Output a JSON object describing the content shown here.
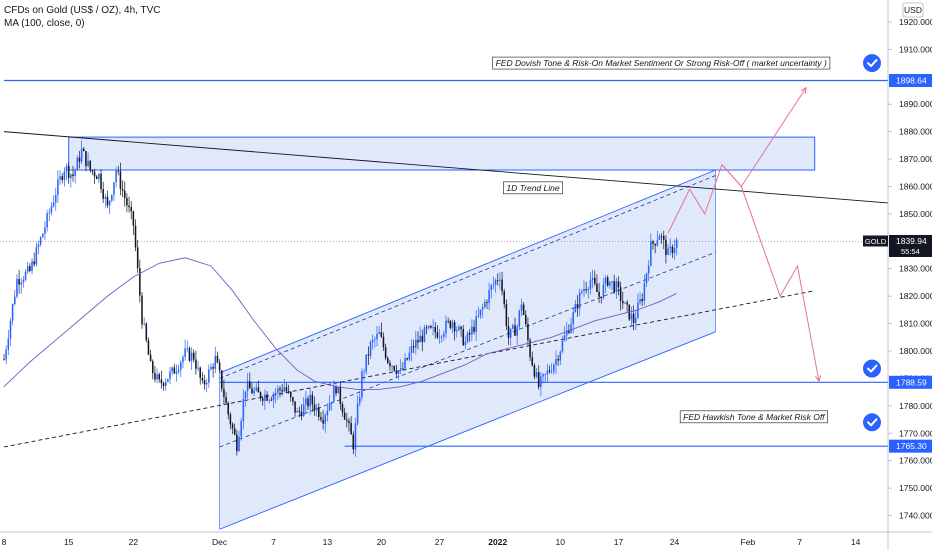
{
  "header": {
    "symbol_title": "CFDs on Gold (US$ / OZ), 4h, TVC",
    "indicator": "MA (100, close, 0)",
    "currency": "USD"
  },
  "colors": {
    "up": "#2962ff",
    "down": "#131722",
    "channel_fill": "#d6e0fb",
    "channel_edge": "#2962ff",
    "ma": "#7e57c2",
    "path": "#e57390",
    "level": "#2962ff",
    "badge": "#2962ff"
  },
  "chart_data": {
    "type": "candlestick",
    "title": "CFDs on Gold (US$ / OZ), 4h, TVC",
    "ylim": [
      1734,
      1928
    ],
    "y_ticks": [
      1740,
      1750,
      1760,
      1770,
      1780,
      1790,
      1800,
      1810,
      1820,
      1830,
      1840,
      1850,
      1860,
      1870,
      1880,
      1890,
      1900,
      1910,
      1920
    ],
    "x_ticks": [
      {
        "label": "8",
        "i": 0
      },
      {
        "label": "15",
        "i": 30
      },
      {
        "label": "22",
        "i": 60
      },
      {
        "label": "Dec",
        "i": 100
      },
      {
        "label": "7",
        "i": 125
      },
      {
        "label": "13",
        "i": 150
      },
      {
        "label": "20",
        "i": 175
      },
      {
        "label": "27",
        "i": 202
      },
      {
        "label": "2022",
        "i": 229
      },
      {
        "label": "10",
        "i": 258
      },
      {
        "label": "17",
        "i": 285
      },
      {
        "label": "24",
        "i": 311
      },
      {
        "label": "Feb",
        "i": 345
      },
      {
        "label": "7",
        "i": 369
      },
      {
        "label": "14",
        "i": 395
      }
    ],
    "x_max_index": 410,
    "closes": [
      [
        0,
        1797
      ],
      [
        6,
        1826
      ],
      [
        12,
        1829
      ],
      [
        18,
        1843
      ],
      [
        24,
        1858
      ],
      [
        28,
        1867
      ],
      [
        32,
        1864
      ],
      [
        36,
        1873
      ],
      [
        40,
        1866
      ],
      [
        44,
        1864
      ],
      [
        48,
        1852
      ],
      [
        52,
        1866
      ],
      [
        56,
        1856
      ],
      [
        60,
        1846
      ],
      [
        64,
        1812
      ],
      [
        68,
        1794
      ],
      [
        72,
        1788
      ],
      [
        78,
        1792
      ],
      [
        84,
        1799
      ],
      [
        88,
        1798
      ],
      [
        92,
        1787
      ],
      [
        98,
        1797
      ],
      [
        100,
        1791
      ],
      [
        104,
        1777
      ],
      [
        108,
        1766
      ],
      [
        112,
        1787
      ],
      [
        118,
        1784
      ],
      [
        124,
        1784
      ],
      [
        130,
        1787
      ],
      [
        136,
        1777
      ],
      [
        142,
        1782
      ],
      [
        148,
        1776
      ],
      [
        154,
        1787
      ],
      [
        158,
        1777
      ],
      [
        162,
        1766
      ],
      [
        166,
        1791
      ],
      [
        170,
        1802
      ],
      [
        174,
        1806
      ],
      [
        178,
        1797
      ],
      [
        184,
        1792
      ],
      [
        190,
        1802
      ],
      [
        196,
        1807
      ],
      [
        202,
        1807
      ],
      [
        208,
        1811
      ],
      [
        214,
        1803
      ],
      [
        220,
        1812
      ],
      [
        226,
        1823
      ],
      [
        230,
        1828
      ],
      [
        234,
        1805
      ],
      [
        238,
        1809
      ],
      [
        240,
        1818
      ],
      [
        244,
        1799
      ],
      [
        248,
        1787
      ],
      [
        252,
        1792
      ],
      [
        256,
        1797
      ],
      [
        260,
        1805
      ],
      [
        264,
        1813
      ],
      [
        268,
        1822
      ],
      [
        272,
        1826
      ],
      [
        276,
        1820
      ],
      [
        280,
        1826
      ],
      [
        284,
        1823
      ],
      [
        288,
        1816
      ],
      [
        292,
        1811
      ],
      [
        296,
        1820
      ],
      [
        300,
        1838
      ],
      [
        304,
        1843
      ],
      [
        308,
        1835
      ],
      [
        312,
        1840
      ]
    ],
    "ma100": [
      [
        0,
        1787
      ],
      [
        12,
        1796
      ],
      [
        24,
        1804
      ],
      [
        36,
        1812
      ],
      [
        48,
        1820
      ],
      [
        60,
        1827
      ],
      [
        72,
        1832
      ],
      [
        84,
        1834
      ],
      [
        96,
        1831
      ],
      [
        106,
        1822
      ],
      [
        116,
        1811
      ],
      [
        126,
        1801
      ],
      [
        136,
        1793
      ],
      [
        144,
        1789
      ],
      [
        154,
        1787
      ],
      [
        164,
        1786
      ],
      [
        174,
        1786
      ],
      [
        184,
        1787
      ],
      [
        194,
        1789
      ],
      [
        204,
        1792
      ],
      [
        214,
        1795
      ],
      [
        224,
        1799
      ],
      [
        234,
        1801
      ],
      [
        244,
        1803
      ],
      [
        254,
        1805
      ],
      [
        264,
        1808
      ],
      [
        274,
        1811
      ],
      [
        284,
        1813
      ],
      [
        294,
        1815
      ],
      [
        304,
        1818
      ],
      [
        312,
        1821
      ]
    ],
    "channel": {
      "upper": [
        [
          100,
          1792
        ],
        [
          330,
          1866
        ]
      ],
      "lower": [
        [
          100,
          1735
        ],
        [
          330,
          1807
        ]
      ],
      "mid_dashed": [
        [
          100,
          1765
        ],
        [
          330,
          1836
        ]
      ],
      "upper_dashed": [
        [
          100,
          1790
        ],
        [
          330,
          1864
        ]
      ],
      "left_index": 100,
      "right_index": 330
    },
    "supply_zone": {
      "x1": 30,
      "x2": 376,
      "y_top": 1878,
      "y_bottom": 1866
    },
    "trend_line_1d": {
      "from": [
        0,
        1880
      ],
      "to": [
        410,
        1854
      ]
    },
    "long_dashed_support": [
      [
        0,
        1765
      ],
      [
        376,
        1822
      ]
    ],
    "levels": [
      {
        "value": 1898.64,
        "label": "1898.64",
        "x_from": 0
      },
      {
        "value": 1788.59,
        "label": "1788.59",
        "x_from": 100
      },
      {
        "value": 1765.3,
        "label": "1765.30",
        "x_from": 158
      }
    ],
    "projection_paths": [
      [
        [
          308,
          1843
        ],
        [
          318,
          1859
        ],
        [
          325,
          1850
        ],
        [
          333,
          1868
        ],
        [
          342,
          1860
        ],
        [
          372,
          1896
        ]
      ],
      [
        [
          333,
          1868
        ],
        [
          342,
          1860
        ],
        [
          360,
          1820
        ],
        [
          368,
          1831
        ],
        [
          378,
          1789
        ]
      ]
    ],
    "last_price": {
      "symbol": "GOLD",
      "value": "1839.94",
      "countdown": "55:54",
      "y": 1839.94
    },
    "annotations": [
      {
        "text": "1D Trend Line",
        "x": 233,
        "y": 1859.5
      },
      {
        "text": "FED Dovish Tone & Risk-On Market Sentiment Or Strong Risk-Off ( market uncertainty )",
        "x": 228,
        "y": 1905
      },
      {
        "text": "FED Hawkish Tone & Market Risk Off",
        "x": 315,
        "y": 1776
      }
    ]
  }
}
